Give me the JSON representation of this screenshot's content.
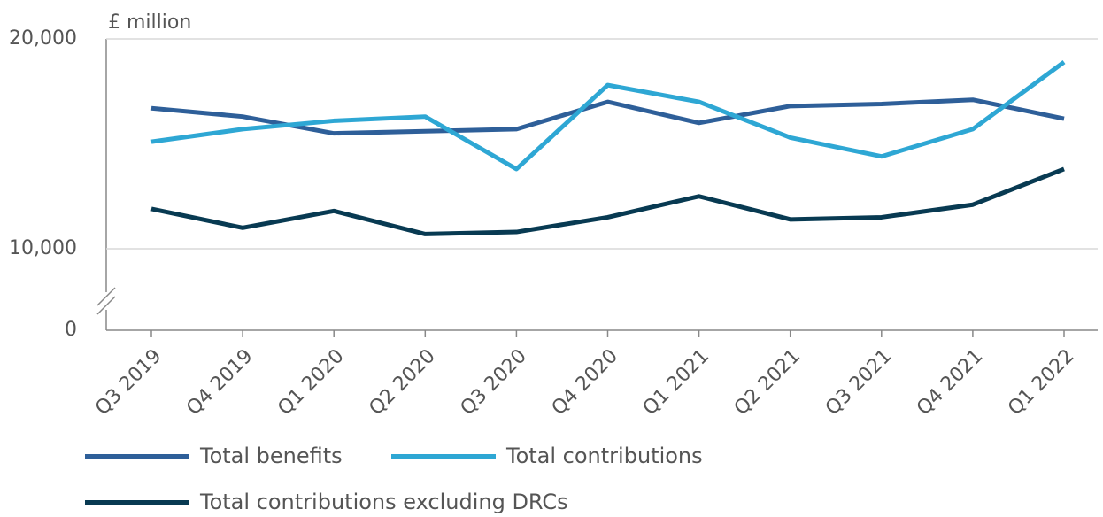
{
  "chart_data": {
    "type": "line",
    "y_label": "£ million",
    "categories": [
      "Q3 2019",
      "Q4 2019",
      "Q1 2020",
      "Q2 2020",
      "Q3 2020",
      "Q4 2020",
      "Q1 2021",
      "Q2 2021",
      "Q3 2021",
      "Q4 2021",
      "Q1 2022"
    ],
    "series": [
      {
        "name": "Total benefits",
        "color": "#2e5f99",
        "values": [
          16700,
          16300,
          15500,
          15600,
          15700,
          17000,
          16000,
          16800,
          16900,
          17100,
          16200
        ]
      },
      {
        "name": "Total contributions",
        "color": "#2ea7d4",
        "values": [
          15100,
          15700,
          16100,
          16300,
          13800,
          17800,
          17000,
          15300,
          14400,
          15700,
          18900
        ]
      },
      {
        "name": "Total contributions excluding DRCs",
        "color": "#083a52",
        "values": [
          11900,
          11000,
          11800,
          10700,
          10800,
          11500,
          12500,
          11400,
          11500,
          12100,
          13800
        ]
      }
    ],
    "ylim": [
      10000,
      20000
    ],
    "yticks": [
      {
        "value": 0,
        "label": "0"
      },
      {
        "value": 10000,
        "label": "10,000"
      },
      {
        "value": 20000,
        "label": "20,000"
      }
    ],
    "grid": true,
    "legend": "bottom"
  }
}
